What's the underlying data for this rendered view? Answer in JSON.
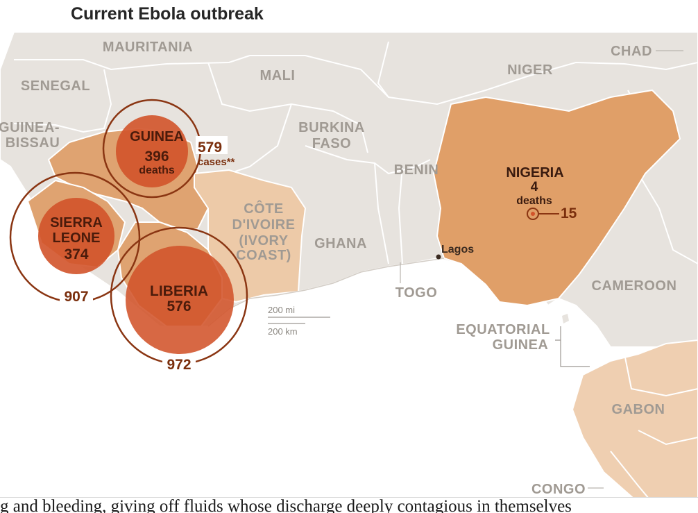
{
  "title": "Current Ebola outbreak",
  "countries": {
    "mauritania": "MAURITANIA",
    "mali": "MALI",
    "niger": "NIGER",
    "chad": "CHAD",
    "senegal": "SENEGAL",
    "guinea_bissau_1": "GUINEA-",
    "guinea_bissau_2": "BISSAU",
    "burkina_1": "BURKINA",
    "burkina_2": "FASO",
    "benin": "BENIN",
    "cote_1": "CÔTE",
    "cote_2": "D'IVOIRE",
    "cote_3": "(IVORY",
    "cote_4": "COAST)",
    "ghana": "GHANA",
    "togo": "TOGO",
    "cameroon": "CAMEROON",
    "eq_guinea_1": "EQUATORIAL",
    "eq_guinea_2": "GUINEA",
    "gabon": "GABON",
    "congo": "CONGO"
  },
  "outbreaks": {
    "guinea": {
      "name": "GUINEA",
      "deaths": "396",
      "deaths_label": "deaths",
      "cases": "579",
      "cases_label": "cases**"
    },
    "sierra_leone": {
      "name_1": "SIERRA",
      "name_2": "LEONE",
      "deaths": "374",
      "cases": "907"
    },
    "liberia": {
      "name": "LIBERIA",
      "deaths": "576",
      "cases": "972"
    },
    "nigeria": {
      "name": "NIGERIA",
      "deaths": "4",
      "deaths_label": "deaths",
      "cases": "15"
    }
  },
  "cities": {
    "lagos": "Lagos"
  },
  "scale": {
    "miles": "200 mi",
    "km": "200 km"
  },
  "footer_text": "g and bleeding, giving off fluids whose discharge deeply contagious in themselves",
  "colors": {
    "land": "#e7e3de",
    "border": "#ffffff",
    "ocean": "#ffffff",
    "affected": "#dfa371",
    "nigeria": "#e09f68",
    "cote": "#edcaa8",
    "central": "#efcfb1",
    "bubble": "#d2532a",
    "ring": "#8a3512"
  }
}
